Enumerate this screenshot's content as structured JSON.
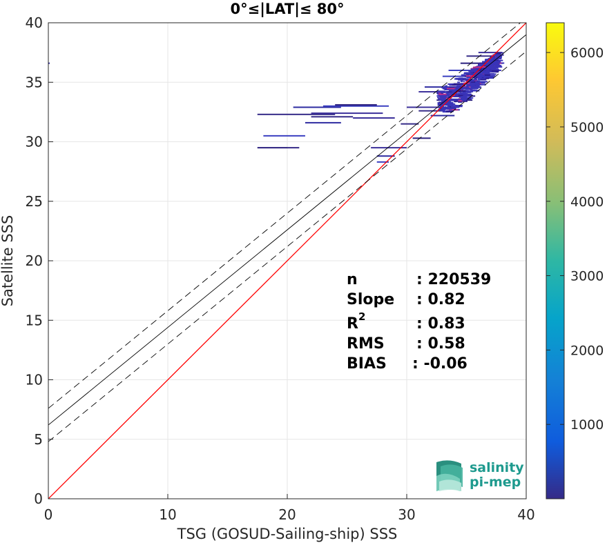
{
  "chart_data": {
    "type": "heatmap",
    "title": "0°≤|LAT|≤ 80°",
    "xlabel": "TSG (GOSUD-Sailing-ship) SSS",
    "ylabel": "Satellite SSS",
    "xlim": [
      0,
      40
    ],
    "ylim": [
      0,
      40
    ],
    "xticks": [
      "0",
      "10",
      "20",
      "30",
      "40"
    ],
    "yticks": [
      "0",
      "5",
      "10",
      "15",
      "20",
      "25",
      "30",
      "35",
      "40"
    ],
    "grid": true,
    "colorbar": {
      "range": [
        0,
        6400
      ],
      "ticks": [
        "1000",
        "2000",
        "3000",
        "4000",
        "5000",
        "6000"
      ],
      "colormap": "parula"
    },
    "lines": [
      {
        "name": "one-to-one",
        "style": "solid",
        "color": "#ff0000",
        "intercept": 0,
        "slope": 1
      },
      {
        "name": "regression",
        "style": "solid",
        "color": "#000000",
        "intercept": 6.2,
        "slope": 0.82
      },
      {
        "name": "regression-upper",
        "style": "dashed",
        "color": "#000000",
        "intercept": 7.6,
        "slope": 0.82
      },
      {
        "name": "regression-lower",
        "style": "dashed",
        "color": "#000000",
        "intercept": 4.8,
        "slope": 0.82
      }
    ],
    "density_segments": [
      {
        "x0": 17.5,
        "x1": 24.0,
        "y": 32.3
      },
      {
        "x0": 22.0,
        "x1": 28.0,
        "y": 32.4
      },
      {
        "x0": 20.5,
        "x1": 24.5,
        "y": 32.9
      },
      {
        "x0": 23.0,
        "x1": 28.5,
        "y": 33.0
      },
      {
        "x0": 24.0,
        "x1": 27.5,
        "y": 33.1
      },
      {
        "x0": 22.0,
        "x1": 25.5,
        "y": 32.1
      },
      {
        "x0": 25.5,
        "x1": 29.0,
        "y": 32.0
      },
      {
        "x0": 21.5,
        "x1": 24.5,
        "y": 31.6
      },
      {
        "x0": 18.0,
        "x1": 21.5,
        "y": 30.5
      },
      {
        "x0": 17.5,
        "x1": 20.0,
        "y": 29.5
      },
      {
        "x0": 20.0,
        "x1": 21.0,
        "y": 29.5
      },
      {
        "x0": 27.0,
        "x1": 30.0,
        "y": 29.5
      },
      {
        "x0": 27.5,
        "x1": 29.0,
        "y": 28.8
      },
      {
        "x0": 27.5,
        "x1": 28.5,
        "y": 28.3
      },
      {
        "x0": 30.5,
        "x1": 32.0,
        "y": 30.3
      },
      {
        "x0": 29.5,
        "x1": 31.0,
        "y": 31.5
      },
      {
        "x0": 31.0,
        "x1": 34.5,
        "y": 34.2
      },
      {
        "x0": 31.5,
        "x1": 35.0,
        "y": 34.6
      },
      {
        "x0": 33.0,
        "x1": 36.5,
        "y": 35.5
      },
      {
        "x0": 32.5,
        "x1": 35.5,
        "y": 33.5
      },
      {
        "x0": 31.0,
        "x1": 33.0,
        "y": 32.6
      },
      {
        "x0": 30.0,
        "x1": 33.5,
        "y": 32.9
      },
      {
        "x0": 32.0,
        "x1": 34.0,
        "y": 32.2
      },
      {
        "x0": 33.5,
        "x1": 36.0,
        "y": 36.0
      },
      {
        "x0": 34.5,
        "x1": 37.0,
        "y": 36.6
      },
      {
        "x0": 35.0,
        "x1": 37.5,
        "y": 37.2
      },
      {
        "x0": 36.0,
        "x1": 37.5,
        "y": 37.5
      },
      {
        "x0": 0.0,
        "x1": 0.1,
        "y": 36.6
      }
    ],
    "density_cluster": {
      "x0": 32.5,
      "x1": 37.5,
      "y0": 32.5,
      "y1": 37.5
    }
  },
  "stats": {
    "n_label": "n",
    "n_value": ": 220539",
    "slope_label": "Slope",
    "slope_value": ": 0.82",
    "r2_label": "R",
    "r2_sup": "2",
    "r2_value": ": 0.83",
    "rms_label": "RMS",
    "rms_value": ": 0.58",
    "bias_label": "BIAS",
    "bias_value": ": -0.06"
  },
  "logo": {
    "line1": "salinity",
    "line2": "pi-mep",
    "color": "#1e9a8e"
  }
}
